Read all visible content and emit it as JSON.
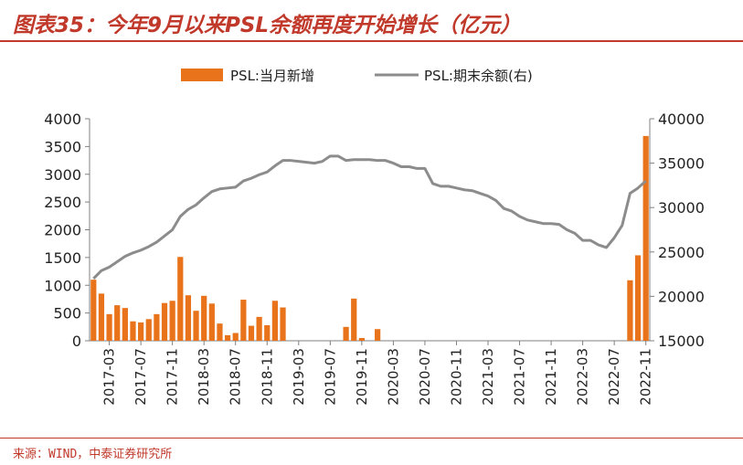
{
  "figure": {
    "title": "图表35：今年9月以来PSL余额再度开始增长（亿元）",
    "source": "来源：WIND，中泰证券研究所"
  },
  "colors": {
    "title": "#c0392b",
    "bar": "#e8731a",
    "line": "#8c8c8c",
    "axis": "#808080"
  },
  "chart_data": {
    "type": "bar+line",
    "legend": {
      "position": "top-center",
      "items": [
        {
          "name": "PSL:当月新增",
          "marker": "bar"
        },
        {
          "name": "PSL:期末余额(右)",
          "marker": "line"
        }
      ]
    },
    "x": [
      "2017-01",
      "2017-02",
      "2017-03",
      "2017-04",
      "2017-05",
      "2017-06",
      "2017-07",
      "2017-08",
      "2017-09",
      "2017-10",
      "2017-11",
      "2017-12",
      "2018-01",
      "2018-02",
      "2018-03",
      "2018-04",
      "2018-05",
      "2018-06",
      "2018-07",
      "2018-08",
      "2018-09",
      "2018-10",
      "2018-11",
      "2018-12",
      "2019-01",
      "2019-02",
      "2019-03",
      "2019-04",
      "2019-05",
      "2019-06",
      "2019-07",
      "2019-08",
      "2019-09",
      "2019-10",
      "2019-11",
      "2019-12",
      "2020-01",
      "2020-02",
      "2020-03",
      "2020-04",
      "2020-05",
      "2020-06",
      "2020-07",
      "2020-08",
      "2020-09",
      "2020-10",
      "2020-11",
      "2020-12",
      "2021-01",
      "2021-02",
      "2021-03",
      "2021-04",
      "2021-05",
      "2021-06",
      "2021-07",
      "2021-08",
      "2021-09",
      "2021-10",
      "2021-11",
      "2021-12",
      "2022-01",
      "2022-02",
      "2022-03",
      "2022-04",
      "2022-05",
      "2022-06",
      "2022-07",
      "2022-08",
      "2022-09",
      "2022-10",
      "2022-11"
    ],
    "x_tick_labels": [
      "2017-03",
      "2017-07",
      "2017-11",
      "2018-03",
      "2018-07",
      "2018-11",
      "2019-03",
      "2019-07",
      "2019-11",
      "2020-03",
      "2020-07",
      "2020-11",
      "2021-03",
      "2021-07",
      "2021-11",
      "2022-03",
      "2022-07",
      "2022-11"
    ],
    "series": [
      {
        "name": "PSL:当月新增",
        "type": "bar",
        "axis": "left",
        "values": [
          1100,
          850,
          480,
          640,
          590,
          350,
          330,
          390,
          480,
          680,
          720,
          1510,
          820,
          540,
          810,
          670,
          310,
          100,
          140,
          740,
          270,
          430,
          280,
          720,
          600,
          0,
          0,
          0,
          0,
          0,
          0,
          0,
          250,
          760,
          50,
          0,
          210,
          0,
          0,
          0,
          0,
          0,
          0,
          0,
          0,
          0,
          0,
          0,
          0,
          0,
          0,
          0,
          0,
          0,
          0,
          0,
          0,
          0,
          0,
          0,
          0,
          0,
          0,
          0,
          0,
          0,
          0,
          0,
          1090,
          1540,
          3690
        ]
      },
      {
        "name": "PSL:期末余额(右)",
        "type": "line",
        "axis": "right",
        "values": [
          22000,
          22900,
          23300,
          23900,
          24500,
          24900,
          25200,
          25600,
          26100,
          26800,
          27500,
          29000,
          29800,
          30300,
          31100,
          31800,
          32100,
          32200,
          32300,
          33000,
          33300,
          33700,
          34000,
          34700,
          35300,
          35300,
          35200,
          35100,
          35000,
          35200,
          35800,
          35800,
          35300,
          35400,
          35400,
          35400,
          35300,
          35300,
          35000,
          34600,
          34600,
          34400,
          34400,
          32700,
          32400,
          32400,
          32200,
          32000,
          31900,
          31600,
          31300,
          30800,
          29900,
          29600,
          29000,
          28600,
          28400,
          28200,
          28200,
          28100,
          27500,
          27100,
          26300,
          26300,
          25800,
          25500,
          26600,
          28000,
          31600,
          32200,
          33000
        ]
      }
    ],
    "y_left": {
      "range": [
        0,
        4000
      ],
      "ticks": [
        "0",
        "500",
        "1000",
        "1500",
        "2000",
        "2500",
        "3000",
        "3500",
        "4000"
      ]
    },
    "y_right": {
      "range": [
        15000,
        40000
      ],
      "ticks": [
        "15000",
        "20000",
        "25000",
        "30000",
        "35000",
        "40000"
      ]
    },
    "grid": false
  }
}
